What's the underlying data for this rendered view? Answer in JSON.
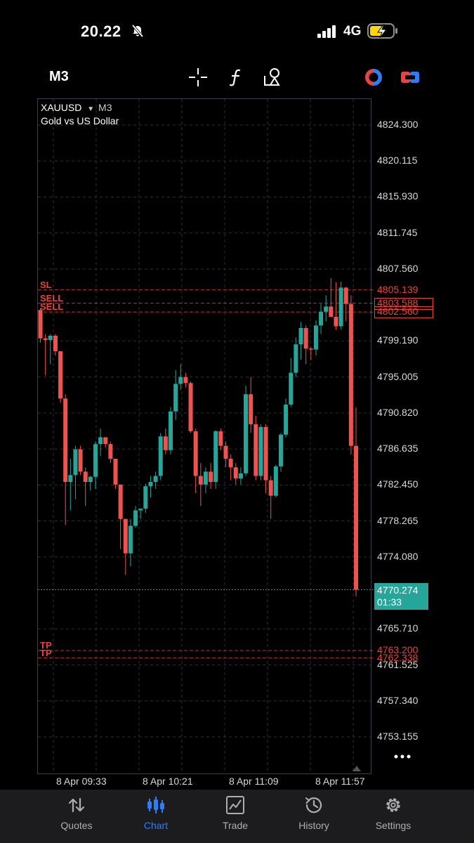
{
  "status_bar": {
    "time": "20.22",
    "network": "4G",
    "icons": [
      "bell-off-icon",
      "signal-icon",
      "battery-charging-icon"
    ]
  },
  "toolbar": {
    "timeframe": "M3",
    "icons": [
      "crosshair-icon",
      "function-icon",
      "objects-icon",
      "one-click-trading-icon",
      "trade-panel-icon"
    ]
  },
  "chart": {
    "symbol": "XAUUSD",
    "timeframe": "M3",
    "description": "Gold vs US Dollar",
    "price_axis": [
      "4824.300",
      "4820.115",
      "4815.930",
      "4811.745",
      "4807.560",
      "4799.190",
      "4795.005",
      "4790.820",
      "4786.635",
      "4782.450",
      "4778.265",
      "4774.080",
      "4765.710",
      "4761.525",
      "4757.340",
      "4753.155"
    ],
    "orders": [
      {
        "tag": "SL",
        "price": "4805.139"
      },
      {
        "tag": "SELL",
        "price": "4803.588"
      },
      {
        "tag": "SELL",
        "price": "4802.560"
      },
      {
        "tag": "TP",
        "price": "4763.200"
      },
      {
        "tag": "TP",
        "price": "4762.338"
      }
    ],
    "current_price": "4770.274",
    "bar_timer": "01:33",
    "time_axis": [
      "8 Apr 09:33",
      "8 Apr 10:21",
      "8 Apr 11:09",
      "8 Apr 11:57"
    ],
    "colors": {
      "bull": "#26a69a",
      "bear": "#ef5350",
      "order": "#e8453f",
      "grid": "#2a2f3a"
    }
  },
  "chart_data": {
    "type": "candlestick",
    "title": "XAUUSD, M3 — Gold vs US Dollar",
    "ohlc": [
      [
        4802.8,
        4803.0,
        4799.0,
        4799.5
      ],
      [
        4799.5,
        4800.0,
        4795.2,
        4799.3
      ],
      [
        4799.3,
        4800.0,
        4796.5,
        4799.8
      ],
      [
        4799.8,
        4800.0,
        4797.5,
        4798.0
      ],
      [
        4798.0,
        4798.0,
        4792.0,
        4792.5
      ],
      [
        4792.5,
        4793.0,
        4777.8,
        4782.8
      ],
      [
        4782.8,
        4785.5,
        4779.5,
        4783.6
      ],
      [
        4783.6,
        4787.0,
        4780.8,
        4786.6
      ],
      [
        4786.6,
        4787.0,
        4783.6,
        4784.0
      ],
      [
        4784.0,
        4784.5,
        4780.0,
        4782.8
      ],
      [
        4782.8,
        4783.5,
        4781.8,
        4783.4
      ],
      [
        4783.4,
        4787.5,
        4782.0,
        4787.2
      ],
      [
        4787.2,
        4789.0,
        4785.8,
        4788.0
      ],
      [
        4788.0,
        4788.0,
        4786.8,
        4787.2
      ],
      [
        4787.2,
        4787.5,
        4785.0,
        4785.5
      ],
      [
        4785.5,
        4785.5,
        4782.0,
        4782.5
      ],
      [
        4782.5,
        4782.5,
        4775.0,
        4778.5
      ],
      [
        4778.5,
        4778.5,
        4772.0,
        4774.5
      ],
      [
        4774.5,
        4778.5,
        4773.0,
        4777.7
      ],
      [
        4777.7,
        4780.0,
        4777.5,
        4779.5
      ],
      [
        4779.5,
        4779.5,
        4778.5,
        4779.7
      ],
      [
        4779.7,
        4782.6,
        4779.2,
        4782.3
      ],
      [
        4782.3,
        4783.5,
        4781.0,
        4782.8
      ],
      [
        4782.8,
        4784.0,
        4782.0,
        4783.5
      ],
      [
        4783.5,
        4788.5,
        4783.0,
        4788.1
      ],
      [
        4788.1,
        4789.0,
        4786.0,
        4786.5
      ],
      [
        4786.5,
        4791.5,
        4786.0,
        4791.0
      ],
      [
        4791.0,
        4795.8,
        4790.0,
        4794.2
      ],
      [
        4794.2,
        4796.5,
        4793.5,
        4795.0
      ],
      [
        4795.0,
        4795.5,
        4793.8,
        4794.3
      ],
      [
        4794.3,
        4794.5,
        4788.5,
        4788.7
      ],
      [
        4788.7,
        4789.0,
        4781.5,
        4783.5
      ],
      [
        4783.5,
        4785.0,
        4780.0,
        4782.5
      ],
      [
        4782.5,
        4784.5,
        4781.5,
        4784.0
      ],
      [
        4784.0,
        4785.0,
        4782.0,
        4782.8
      ],
      [
        4782.8,
        4788.8,
        4782.0,
        4788.7
      ],
      [
        4788.7,
        4789.0,
        4786.5,
        4787.0
      ],
      [
        4787.0,
        4787.5,
        4784.5,
        4785.5
      ],
      [
        4785.5,
        4786.0,
        4783.0,
        4784.5
      ],
      [
        4784.5,
        4785.0,
        4782.5,
        4783.2
      ],
      [
        4783.2,
        4784.5,
        4782.5,
        4783.8
      ],
      [
        4783.8,
        4794.0,
        4783.5,
        4793.0
      ],
      [
        4793.0,
        4795.0,
        4788.5,
        4789.5
      ],
      [
        4789.5,
        4790.5,
        4783.0,
        4783.5
      ],
      [
        4783.5,
        4789.5,
        4783.0,
        4789.2
      ],
      [
        4789.2,
        4789.5,
        4781.5,
        4783.0
      ],
      [
        4783.0,
        4783.5,
        4778.5,
        4781.2
      ],
      [
        4781.2,
        4784.8,
        4781.0,
        4784.6
      ],
      [
        4784.6,
        4788.5,
        4784.0,
        4788.3
      ],
      [
        4788.3,
        4792.5,
        4788.0,
        4791.8
      ],
      [
        4791.8,
        4797.2,
        4791.5,
        4795.5
      ],
      [
        4795.5,
        4799.6,
        4795.0,
        4798.8
      ],
      [
        4798.8,
        4801.4,
        4797.0,
        4800.7
      ],
      [
        4800.7,
        4801.0,
        4796.5,
        4798.3
      ],
      [
        4798.3,
        4798.5,
        4797.0,
        4798.2
      ],
      [
        4798.2,
        4801.6,
        4797.5,
        4801.0
      ],
      [
        4801.0,
        4803.5,
        4800.0,
        4802.6
      ],
      [
        4802.6,
        4804.5,
        4801.5,
        4803.2
      ],
      [
        4803.2,
        4806.5,
        4802.5,
        4802.0
      ],
      [
        4802.0,
        4806.0,
        4800.5,
        4800.9
      ],
      [
        4800.9,
        4806.1,
        4800.5,
        4805.4
      ],
      [
        4805.4,
        4805.5,
        4801.5,
        4803.5
      ],
      [
        4803.5,
        4804.5,
        4786.0,
        4787.0
      ],
      [
        4787.0,
        4791.5,
        4769.5,
        4770.274
      ]
    ],
    "current_price": 4770.274,
    "ylim": [
      4751.0,
      4827.0
    ],
    "x_ticks": [
      "8 Apr 09:33",
      "8 Apr 10:21",
      "8 Apr 11:09",
      "8 Apr 11:57"
    ],
    "horizontal_lines": [
      {
        "label": "SL",
        "value": 4805.139
      },
      {
        "label": "SELL",
        "value": 4803.588
      },
      {
        "label": "SELL",
        "value": 4802.56
      },
      {
        "label": "TP",
        "value": 4763.2
      },
      {
        "label": "TP",
        "value": 4762.338
      }
    ],
    "grid": true
  },
  "bottom_nav": [
    {
      "label": "Quotes",
      "icon": "quotes-arrows-icon",
      "active": false
    },
    {
      "label": "Chart",
      "icon": "candles-icon",
      "active": true
    },
    {
      "label": "Trade",
      "icon": "trade-chart-icon",
      "active": false
    },
    {
      "label": "History",
      "icon": "history-clock-icon",
      "active": false
    },
    {
      "label": "Settings",
      "icon": "settings-gear-icon",
      "active": false
    }
  ]
}
